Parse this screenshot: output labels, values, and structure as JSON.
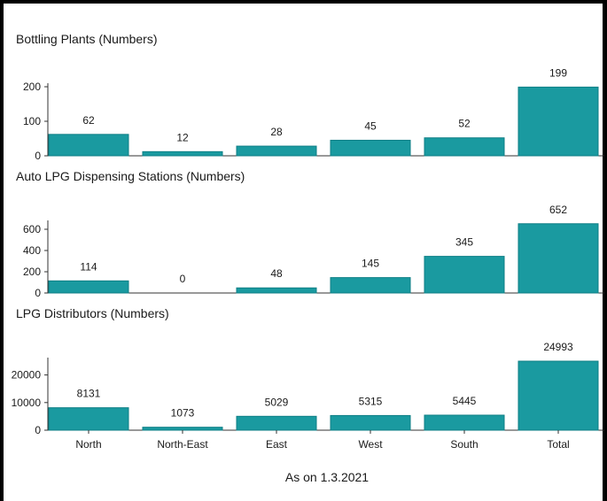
{
  "chart_data": {
    "type": "bar",
    "categories": [
      "North",
      "North-East",
      "East",
      "West",
      "South",
      "Total"
    ],
    "footer": "As on 1.3.2021",
    "bar_color": "#1a9aa0",
    "bar_color_dark": "#0f7f86",
    "panels": [
      {
        "title": "Bottling Plants (Numbers)",
        "values": [
          62,
          12,
          28,
          45,
          52,
          199
        ],
        "ylim": [
          0,
          200
        ],
        "yticks": [
          0,
          100,
          200
        ]
      },
      {
        "title": "Auto LPG Dispensing Stations (Numbers)",
        "values": [
          114,
          0,
          48,
          145,
          345,
          652
        ],
        "ylim": [
          0,
          650
        ],
        "yticks": [
          0,
          200,
          400,
          600
        ]
      },
      {
        "title": "LPG Distributors (Numbers)",
        "values": [
          8131,
          1073,
          5029,
          5315,
          5445,
          24993
        ],
        "ylim": [
          0,
          25000
        ],
        "yticks": [
          0,
          10000,
          20000
        ]
      }
    ]
  }
}
